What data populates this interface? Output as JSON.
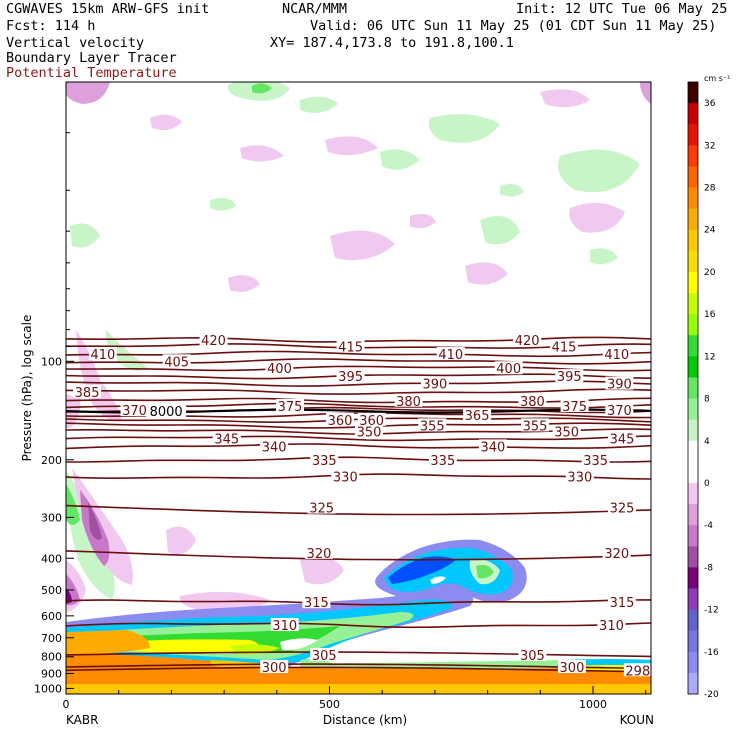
{
  "header": {
    "model": "CGWAVES 15km ARW-GFS init",
    "center": "NCAR/MMM",
    "init": "Init: 12 UTC Tue 06 May 25",
    "fcst": "Fcst:  114 h",
    "valid": "Valid: 06 UTC Sun 11 May 25 (01 CDT Sun 11 May 25)",
    "field1": "Vertical velocity",
    "xy": "XY= 187.4,173.8 to 191.8,100.1",
    "field2": "Boundary Layer Tracer",
    "field3": "Potential Temperature"
  },
  "colors": {
    "theta": "#6b0f0f",
    "tracer": "#000000"
  },
  "chart_data": {
    "type": "heatmap",
    "xlabel": "Distance (km)",
    "ylabel": "Pressure (hPa), log scale",
    "x_ticks": [
      0,
      500,
      1000
    ],
    "x_range": [
      0,
      1110
    ],
    "y_ticks": [
      100,
      200,
      300,
      400,
      500,
      600,
      700,
      800,
      900,
      1000
    ],
    "y_scale": "log",
    "y_range": [
      1040,
      14
    ],
    "left_endpoint": "KABR",
    "right_endpoint": "KOUN",
    "colorbar": {
      "units": "cm s⁻¹",
      "tick_labels": [
        36,
        32,
        28,
        24,
        20,
        16,
        12,
        8,
        4,
        0,
        -4,
        -8,
        -12,
        -16,
        -20
      ],
      "colors": [
        "#3c0000",
        "#c80000",
        "#e61400",
        "#ff3c00",
        "#ff6400",
        "#ff8c00",
        "#ffaa00",
        "#ffc800",
        "#ffdc00",
        "#ffff00",
        "#c8ff00",
        "#96ff00",
        "#32dc32",
        "#00c800",
        "#64e664",
        "#96f096",
        "#c8f5c8",
        "#ffffff",
        "#ffffff",
        "#f0c8f0",
        "#dca0dc",
        "#c878c8",
        "#a050a0",
        "#780078",
        "#8c3cb4",
        "#6464c8",
        "#7878dc",
        "#8c8cf0",
        "#aaaaff"
      ]
    },
    "theta_contours": [
      {
        "value": 298,
        "p": 880,
        "label_x": [
          1085
        ]
      },
      {
        "value": 300,
        "p": 860,
        "label_x": [
          395,
          960
        ]
      },
      {
        "value": 305,
        "p": 790,
        "label_x": [
          490,
          885
        ]
      },
      {
        "value": 310,
        "p": 640,
        "label_x": [
          415,
          1035
        ]
      },
      {
        "value": 315,
        "p": 545,
        "label_x": [
          475,
          1055
        ]
      },
      {
        "value": 320,
        "p": 385,
        "label_x": [
          480,
          1045
        ]
      },
      {
        "value": 325,
        "p": 280,
        "label_x": [
          485,
          1055
        ]
      },
      {
        "value": 330,
        "p": 225,
        "label_x": [
          530,
          975
        ]
      },
      {
        "value": 335,
        "p": 200,
        "label_x": [
          490,
          715,
          1005
        ]
      },
      {
        "value": 340,
        "p": 182,
        "label_x": [
          395,
          810
        ]
      },
      {
        "value": 345,
        "p": 172,
        "label_x": [
          305,
          1055
        ]
      },
      {
        "value": 350,
        "p": 164,
        "label_x": [
          575,
          950
        ]
      },
      {
        "value": 355,
        "p": 157,
        "label_x": [
          695,
          890
        ]
      },
      {
        "value": 360,
        "p": 151,
        "label_x": [
          520,
          580
        ]
      },
      {
        "value": 365,
        "p": 146,
        "label_x": [
          780
        ]
      },
      {
        "value": 370,
        "p": 141,
        "label_x": [
          130,
          1050
        ]
      },
      {
        "value": 375,
        "p": 137,
        "label_x": [
          425,
          965
        ]
      },
      {
        "value": 380,
        "p": 132,
        "label_x": [
          650,
          885
        ]
      },
      {
        "value": 385,
        "p": 124,
        "label_x": [
          40
        ]
      },
      {
        "value": 390,
        "p": 117,
        "label_x": [
          700,
          1050
        ]
      },
      {
        "value": 395,
        "p": 111,
        "label_x": [
          540,
          955
        ]
      },
      {
        "value": 400,
        "p": 105,
        "label_x": [
          405,
          840
        ]
      },
      {
        "value": 405,
        "p": 100,
        "label_x": [
          210
        ]
      },
      {
        "value": 410,
        "p": 95,
        "label_x": [
          70,
          730,
          1045
        ]
      },
      {
        "value": 415,
        "p": 90,
        "label_x": [
          540,
          945
        ]
      },
      {
        "value": 420,
        "p": 86,
        "label_x": [
          280,
          875
        ]
      }
    ],
    "tracer_label": {
      "value": 8000,
      "x": 190,
      "p": 142
    }
  }
}
